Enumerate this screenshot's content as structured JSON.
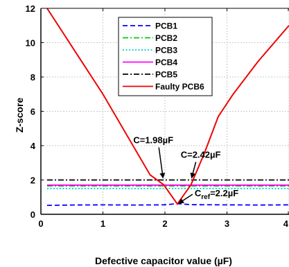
{
  "chart_data": {
    "type": "line",
    "xlabel": "Defective capacitor value (µF)",
    "ylabel": "Z-score",
    "xlim": [
      0,
      4
    ],
    "ylim": [
      0,
      12
    ],
    "x_ticks": [
      0,
      1,
      2,
      3,
      4
    ],
    "y_ticks": [
      0,
      2,
      4,
      6,
      8,
      10,
      12
    ],
    "grid": true,
    "legend_position": "top-center",
    "series": [
      {
        "name": "PCB1",
        "color": "#0000ff",
        "style": "dashed",
        "x": [
          0.1,
          0.5,
          1.0,
          1.5,
          1.98,
          2.2,
          2.42,
          3.0,
          3.5,
          4.0
        ],
        "y": [
          0.52,
          0.54,
          0.55,
          0.54,
          0.55,
          0.62,
          0.56,
          0.55,
          0.54,
          0.55
        ]
      },
      {
        "name": "PCB2",
        "color": "#00cc00",
        "style": "dashdot",
        "x": [
          0.1,
          4.0
        ],
        "y": [
          1.65,
          1.65
        ]
      },
      {
        "name": "PCB3",
        "color": "#00cccc",
        "style": "dotted",
        "x": [
          0.1,
          4.0
        ],
        "y": [
          1.5,
          1.5
        ]
      },
      {
        "name": "PCB4",
        "color": "#ff00ff",
        "style": "solid",
        "x": [
          0.1,
          4.0
        ],
        "y": [
          1.7,
          1.7
        ]
      },
      {
        "name": "PCB5",
        "color": "#000000",
        "style": "dashdot",
        "x": [
          0.1,
          4.0
        ],
        "y": [
          2.0,
          2.0
        ]
      },
      {
        "name": "Faulty PCB6",
        "color": "#ee0000",
        "style": "solid",
        "x": [
          0.1,
          1.0,
          1.76,
          1.98,
          2.2,
          2.42,
          2.64,
          2.86,
          3.1,
          3.5,
          4.0
        ],
        "y": [
          12.0,
          7.0,
          2.3,
          1.72,
          0.6,
          1.72,
          3.6,
          5.7,
          7.0,
          8.9,
          11.0
        ]
      }
    ],
    "annotations": [
      {
        "label": "C=1.98µF",
        "x": 1.98,
        "y": 2.0
      },
      {
        "label": "C=2.42µF",
        "x": 2.42,
        "y": 2.0
      },
      {
        "label_main": "C",
        "label_sub": "ref",
        "label_rest": "=2.2µF",
        "x": 2.2,
        "y": 0.6
      }
    ]
  }
}
